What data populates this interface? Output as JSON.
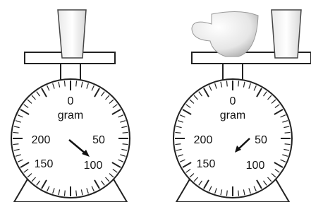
{
  "scales": [
    {
      "dial_labels": [
        0,
        50,
        100,
        150,
        200
      ],
      "unit": "gram"
    },
    {
      "dial_labels": [
        0,
        50,
        100,
        150,
        200
      ],
      "unit": "gram"
    }
  ]
}
